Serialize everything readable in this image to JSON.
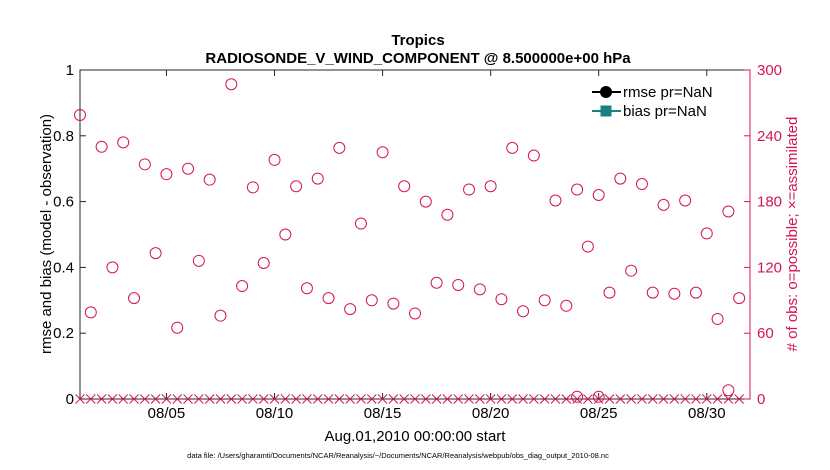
{
  "chart_data": {
    "type": "scatter",
    "title": "Tropics",
    "subtitle": "RADIOSONDE_V_WIND_COMPONENT @ 8.500000e+00 hPa",
    "xlabel": "Aug.01,2010 00:00:00 start",
    "ylabel_left": "rmse and bias (model - observation)",
    "ylabel_right": "# of obs: o=possible; ×=assimilated",
    "x_ticks": [
      "08/05",
      "08/10",
      "08/15",
      "08/20",
      "08/25",
      "08/30"
    ],
    "x_tick_values": [
      5,
      10,
      15,
      20,
      25,
      30
    ],
    "xlim": [
      1,
      32
    ],
    "ylim_left": [
      0,
      1
    ],
    "ylim_right": [
      0,
      300
    ],
    "y_left_ticks": [
      "0",
      "0.2",
      "0.4",
      "0.6",
      "0.8",
      "1"
    ],
    "y_left_tick_values": [
      0,
      0.2,
      0.4,
      0.6,
      0.8,
      1
    ],
    "y_right_ticks": [
      "0",
      "60",
      "120",
      "180",
      "240",
      "300"
    ],
    "y_right_tick_values": [
      0,
      60,
      120,
      180,
      240,
      300
    ],
    "legend_position": "top-right",
    "series": [
      {
        "name": "rmse pr=NaN",
        "color": "#000000",
        "marker": "circle",
        "values": []
      },
      {
        "name": "bias pr=NaN",
        "color": "#1a8080",
        "marker": "square",
        "values": []
      },
      {
        "name": "possible",
        "color": "#d4145a",
        "marker": "open-circle",
        "axis": "right",
        "x": [
          1.0,
          1.5,
          2.0,
          2.5,
          3.0,
          3.5,
          4.0,
          4.5,
          5.0,
          5.5,
          6.0,
          6.5,
          7.0,
          7.5,
          8.0,
          8.5,
          9.0,
          9.5,
          10.0,
          10.5,
          11.0,
          11.5,
          12.0,
          12.5,
          13.0,
          13.5,
          14.0,
          14.5,
          15.0,
          15.5,
          16.0,
          16.5,
          17.0,
          17.5,
          18.0,
          18.5,
          19.0,
          19.5,
          20.0,
          20.5,
          21.0,
          21.5,
          22.0,
          22.5,
          23.0,
          23.5,
          24.0,
          24.5,
          25.0,
          25.5,
          26.0,
          26.5,
          27.0,
          27.5,
          28.0,
          28.5,
          29.0,
          29.5,
          30.0,
          30.5,
          31.0,
          31.5
        ],
        "values": [
          259,
          79,
          230,
          120,
          234,
          92,
          214,
          133,
          205,
          65,
          210,
          126,
          200,
          76,
          287,
          103,
          193,
          124,
          218,
          150,
          194,
          101,
          201,
          92,
          229,
          82,
          160,
          90,
          225,
          87,
          194,
          78,
          180,
          106,
          168,
          104,
          191,
          100,
          194,
          91,
          229,
          80,
          222,
          90,
          181,
          85,
          191,
          139,
          186,
          97,
          201,
          117,
          196,
          97,
          177,
          96,
          181,
          97,
          151,
          73,
          171,
          92
        ]
      },
      {
        "name": "assimilated",
        "color": "#d4145a",
        "marker": "x",
        "axis": "right",
        "x": [
          1.0,
          1.5,
          2.0,
          2.5,
          3.0,
          3.5,
          4.0,
          4.5,
          5.0,
          5.5,
          6.0,
          6.5,
          7.0,
          7.5,
          8.0,
          8.5,
          9.0,
          9.5,
          10.0,
          10.5,
          11.0,
          11.5,
          12.0,
          12.5,
          13.0,
          13.5,
          14.0,
          14.5,
          15.0,
          15.5,
          16.0,
          16.5,
          17.0,
          17.5,
          18.0,
          18.5,
          19.0,
          19.5,
          20.0,
          20.5,
          21.0,
          21.5,
          22.0,
          22.5,
          23.0,
          23.5,
          24.0,
          24.5,
          25.0,
          25.5,
          26.0,
          26.5,
          27.0,
          27.5,
          28.0,
          28.5,
          29.0,
          29.5,
          30.0,
          30.5,
          31.0,
          31.5
        ],
        "values": [
          0,
          0,
          0,
          0,
          0,
          0,
          0,
          0,
          0,
          0,
          0,
          0,
          0,
          0,
          0,
          0,
          0,
          0,
          0,
          0,
          0,
          0,
          0,
          0,
          0,
          0,
          0,
          0,
          0,
          0,
          0,
          0,
          0,
          0,
          0,
          0,
          0,
          0,
          0,
          0,
          0,
          0,
          0,
          0,
          0,
          0,
          0,
          0,
          0,
          0,
          0,
          0,
          0,
          0,
          0,
          0,
          0,
          0,
          0,
          0,
          0,
          0
        ]
      },
      {
        "name": "possible-near-zero",
        "color": "#d4145a",
        "marker": "open-circle",
        "axis": "right",
        "x": [
          24.0,
          25.0,
          31.0
        ],
        "values": [
          2,
          2,
          8
        ]
      }
    ],
    "legend": [
      {
        "label": "rmse pr=NaN",
        "color": "#000000",
        "marker": "circle"
      },
      {
        "label": "bias pr=NaN",
        "color": "#1a8080",
        "marker": "square"
      }
    ],
    "colors": {
      "left_axis": "#000000",
      "right_axis": "#d4145a"
    }
  },
  "footnote": "data file: /Users/gharamti/Documents/NCAR/Reanalysis/~/Documents/NCAR/Reanalysis/webpub/obs_diag_output_2010-08.nc"
}
